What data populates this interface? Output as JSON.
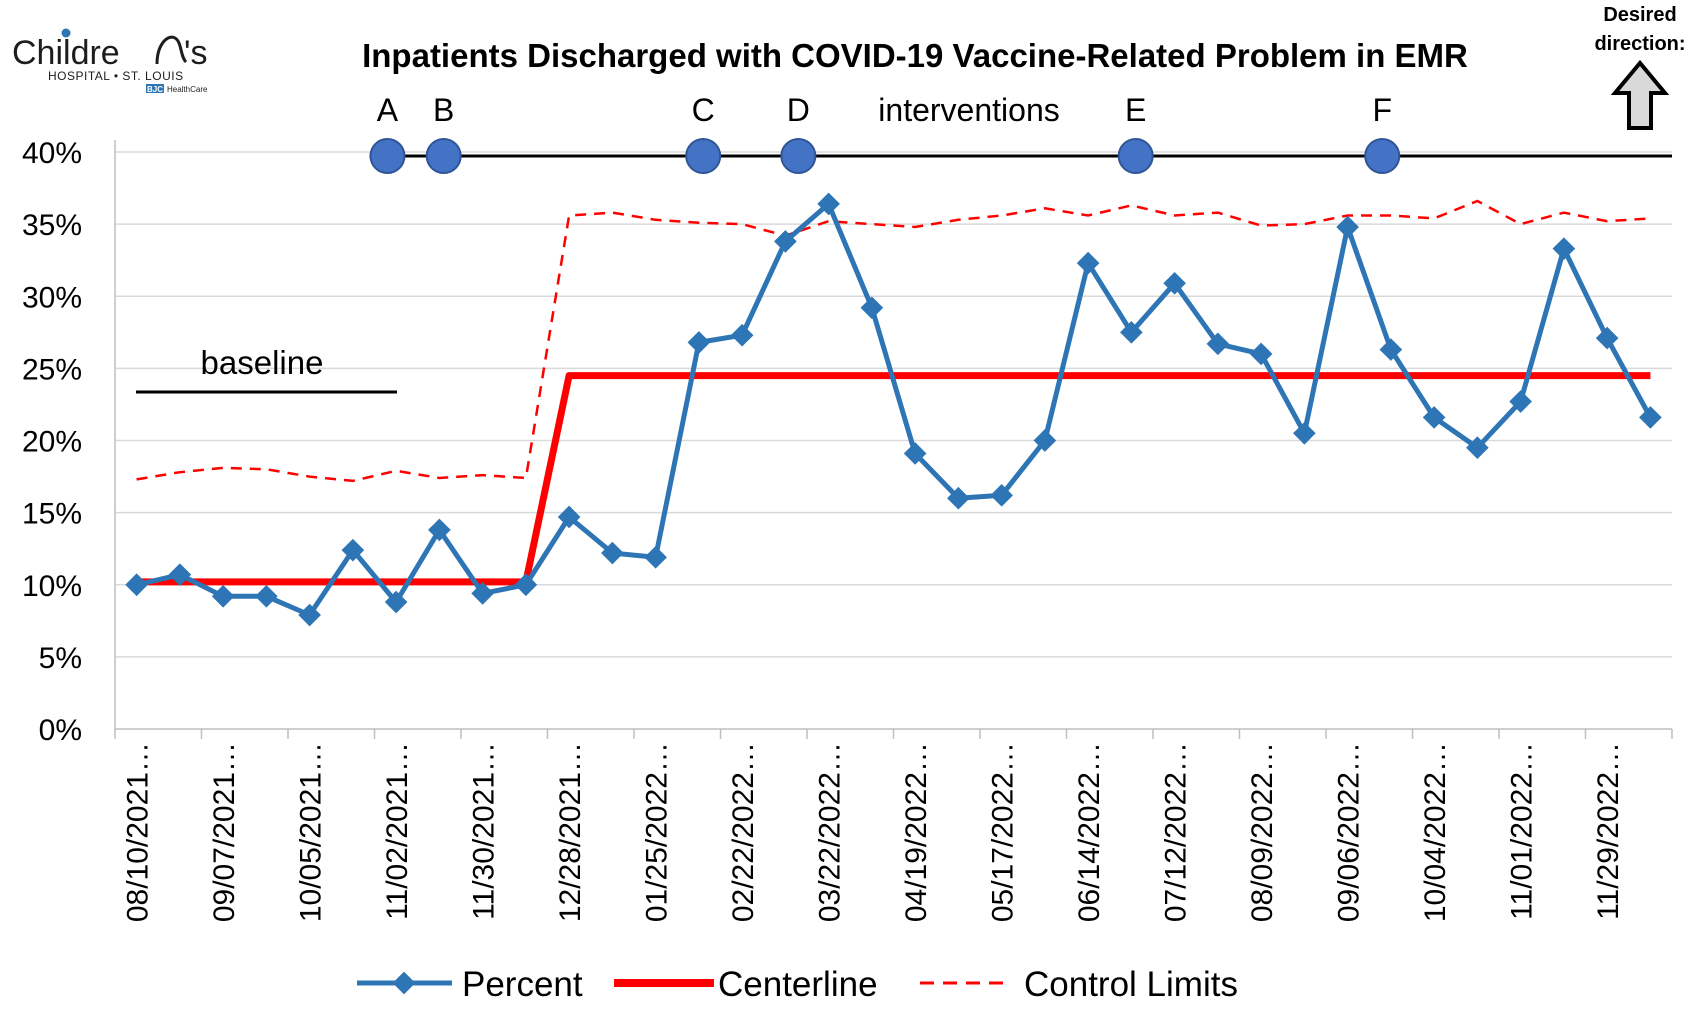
{
  "logo": {
    "name_left": "Childre",
    "name_right": "'s",
    "subtitle": "HOSPITAL • ST. LOUIS",
    "badge": "BJC",
    "badge_text": "HealthCare"
  },
  "colors": {
    "percent": "#2e75b6",
    "centerline": "#ff0000",
    "control_limits": "#ff0000",
    "intervention": "#4472c4",
    "grid": "#d9d9d9",
    "axis": "#000000"
  },
  "chart_data": {
    "type": "line",
    "title": "Inpatients Discharged with COVID-19 Vaccine-Related Problem in EMR",
    "xlabel": "",
    "ylabel": "",
    "ylim": [
      0,
      40
    ],
    "yticks": [
      0,
      5,
      10,
      15,
      20,
      25,
      30,
      35,
      40
    ],
    "ytick_labels": [
      "0%",
      "5%",
      "10%",
      "15%",
      "20%",
      "25%",
      "30%",
      "35%",
      "40%"
    ],
    "x_tick_labels": [
      "08/10/2021…",
      "09/07/2021…",
      "10/05/2021…",
      "11/02/2021…",
      "11/30/2021…",
      "12/28/2021…",
      "01/25/2022…",
      "02/22/2022…",
      "03/22/2022…",
      "04/19/2022…",
      "05/17/2022…",
      "06/14/2022…",
      "07/12/2022…",
      "08/09/2022…",
      "09/06/2022…",
      "10/04/2022…",
      "11/01/2022…",
      "11/29/2022…"
    ],
    "point_count": 36,
    "grid": true,
    "legend_position": "bottom",
    "series": [
      {
        "name": "Percent",
        "values": [
          10.0,
          10.7,
          9.2,
          9.2,
          7.9,
          12.4,
          8.8,
          13.8,
          9.4,
          10.0,
          14.7,
          12.2,
          11.9,
          26.8,
          27.3,
          33.8,
          36.4,
          29.2,
          19.1,
          16.0,
          16.2,
          20.0,
          32.3,
          27.5,
          30.9,
          26.7,
          26.0,
          20.5,
          34.8,
          26.3,
          21.6,
          19.5,
          22.7,
          33.3,
          27.1,
          21.6
        ]
      },
      {
        "name": "Centerline",
        "values": [
          10.2,
          10.2,
          10.2,
          10.2,
          10.2,
          10.2,
          10.2,
          10.2,
          10.2,
          10.2,
          24.5,
          24.5,
          24.5,
          24.5,
          24.5,
          24.5,
          24.5,
          24.5,
          24.5,
          24.5,
          24.5,
          24.5,
          24.5,
          24.5,
          24.5,
          24.5,
          24.5,
          24.5,
          24.5,
          24.5,
          24.5,
          24.5,
          24.5,
          24.5,
          24.5,
          24.5
        ]
      },
      {
        "name": "Control Limits",
        "values": [
          17.3,
          17.8,
          18.1,
          18.0,
          17.5,
          17.2,
          17.9,
          17.4,
          17.6,
          17.4,
          35.6,
          35.8,
          35.3,
          35.1,
          35.0,
          34.2,
          35.2,
          35.0,
          34.8,
          35.3,
          35.6,
          36.1,
          35.6,
          36.3,
          35.6,
          35.8,
          34.9,
          35.0,
          35.6,
          35.6,
          35.4,
          36.6,
          35.0,
          35.8,
          35.2,
          35.4
        ]
      }
    ],
    "annotations": {
      "baseline_label": "baseline",
      "interventions_label": "interventions",
      "markers": [
        {
          "label": "A",
          "position": 5.8
        },
        {
          "label": "B",
          "position": 7.1
        },
        {
          "label": "C",
          "position": 13.1
        },
        {
          "label": "D",
          "position": 15.3
        },
        {
          "label": "E",
          "position": 23.1
        },
        {
          "label": "F",
          "position": 28.8
        }
      ],
      "desired_direction": "Desired direction:",
      "desired_direction_line1": "Desired",
      "desired_direction_line2": "direction:"
    }
  }
}
